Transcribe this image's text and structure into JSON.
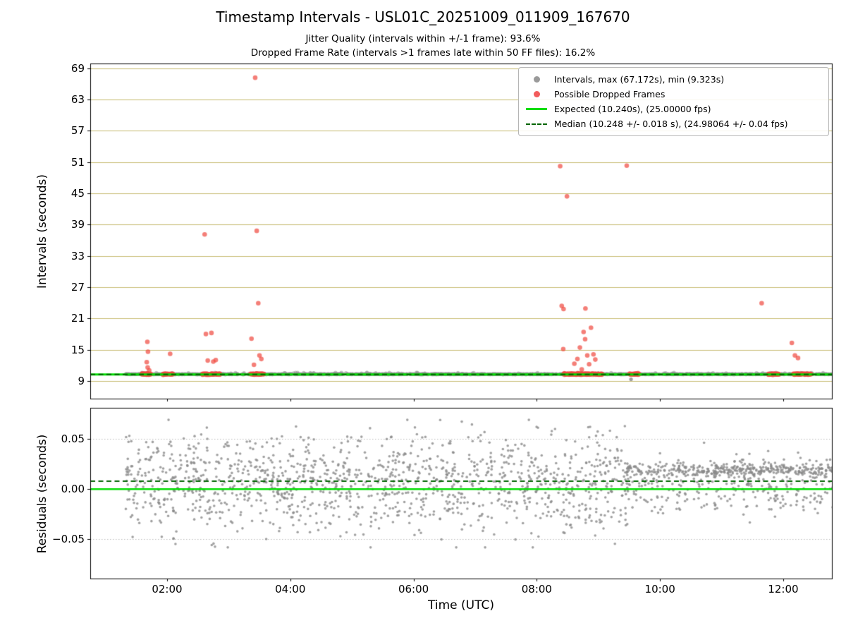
{
  "title": "Timestamp Intervals - USL01C_20251009_011909_167670",
  "subtitle1": "Jitter Quality (intervals within +/-1 frame): 93.6%",
  "subtitle2": "Dropped Frame Rate (intervals >1 frames late within 50 FF files): 16.2%",
  "xlabel": "Time (UTC)",
  "legend": {
    "items": [
      {
        "type": "dot",
        "color": "#9a9a9a",
        "marker_name": "intervals-dot-marker-icon",
        "label": "Intervals, max (67.172s), min (9.323s)"
      },
      {
        "type": "dot",
        "color": "#f25c5c",
        "marker_name": "dropped-frames-dot-marker-icon",
        "label": "Possible Dropped Frames"
      },
      {
        "type": "line",
        "color": "#00dd00",
        "marker_name": "expected-line-marker-icon",
        "label": "Expected (10.240s), (25.00000 fps)"
      },
      {
        "type": "dashed",
        "color": "#006400",
        "marker_name": "median-line-marker-icon",
        "label": "Median (10.248 +/- 0.018 s), (24.98064 +/- 0.04 fps)"
      }
    ]
  },
  "chart_data": [
    {
      "type": "scatter",
      "name": "intervals-plot",
      "ylabel": "Intervals (seconds)",
      "ylim": [
        5.6,
        69.9
      ],
      "xlim_hours": [
        0.753,
        12.79
      ],
      "yticks": [
        {
          "value": 9,
          "label": "9"
        },
        {
          "value": 15,
          "label": "15"
        },
        {
          "value": 21,
          "label": "21"
        },
        {
          "value": 27,
          "label": "27"
        },
        {
          "value": 33,
          "label": "33"
        },
        {
          "value": 39,
          "label": "39"
        },
        {
          "value": 45,
          "label": "45"
        },
        {
          "value": 51,
          "label": "51"
        },
        {
          "value": 57,
          "label": "57"
        },
        {
          "value": 63,
          "label": "63"
        },
        {
          "value": 69,
          "label": "69"
        }
      ],
      "grid": {
        "color": "#c9bc74",
        "axis": "y"
      },
      "lines": [
        {
          "name": "expected",
          "value": 10.24,
          "fps": "25.00000",
          "color": "#00dd00",
          "width": 3,
          "dash": false
        },
        {
          "name": "median",
          "value": 10.248,
          "tolerance_s": 0.018,
          "fps": "24.98064",
          "fps_tolerance": 0.04,
          "color": "#006400",
          "width": 2,
          "dash": true
        }
      ],
      "series": [
        {
          "name": "intervals",
          "color": "#8f8f8f",
          "max_s": 67.172,
          "min_s": 9.323,
          "band": {
            "t0": 1.33,
            "t1": 12.82,
            "mean": 10.29,
            "sd": 0.022,
            "count": 1500,
            "fuzz_count": 110,
            "fuzz_min": 10.33,
            "fuzz_max": 10.62
          },
          "points": [
            [
              9.53,
              9.323
            ]
          ]
        },
        {
          "name": "possible_dropped_frames",
          "color": "#f0483f",
          "cluster_mean": 10.31,
          "cluster_sd": 0.06,
          "clusters": [
            {
              "t0": 1.58,
              "t1": 1.76,
              "count": 48
            },
            {
              "t0": 1.93,
              "t1": 2.1,
              "count": 44
            },
            {
              "t0": 2.57,
              "t1": 2.86,
              "count": 82
            },
            {
              "t0": 3.35,
              "t1": 3.57,
              "count": 64
            },
            {
              "t0": 8.43,
              "t1": 9.06,
              "count": 195
            },
            {
              "t0": 9.5,
              "t1": 9.66,
              "count": 46
            },
            {
              "t0": 11.76,
              "t1": 11.94,
              "count": 52
            },
            {
              "t0": 12.16,
              "t1": 12.46,
              "count": 82
            }
          ],
          "points": [
            [
              1.67,
              12.6
            ],
            [
              1.68,
              16.5
            ],
            [
              1.685,
              11.6
            ],
            [
              1.69,
              14.6
            ],
            [
              1.71,
              11.0
            ],
            [
              2.05,
              14.2
            ],
            [
              2.61,
              37.1
            ],
            [
              2.63,
              18.0
            ],
            [
              2.66,
              12.9
            ],
            [
              2.72,
              18.2
            ],
            [
              2.75,
              12.7
            ],
            [
              2.79,
              13.0
            ],
            [
              3.37,
              17.1
            ],
            [
              3.41,
              12.1
            ],
            [
              3.43,
              67.172
            ],
            [
              3.455,
              37.8
            ],
            [
              3.48,
              23.9
            ],
            [
              3.5,
              13.9
            ],
            [
              3.53,
              13.2
            ],
            [
              8.38,
              50.2
            ],
            [
              8.405,
              23.4
            ],
            [
              8.435,
              22.8
            ],
            [
              8.43,
              15.1
            ],
            [
              8.49,
              44.4
            ],
            [
              8.61,
              12.3
            ],
            [
              8.66,
              13.2
            ],
            [
              8.7,
              15.4
            ],
            [
              8.73,
              11.2
            ],
            [
              8.76,
              18.4
            ],
            [
              8.785,
              17.0
            ],
            [
              8.79,
              22.9
            ],
            [
              8.82,
              13.9
            ],
            [
              8.85,
              12.2
            ],
            [
              8.88,
              19.2
            ],
            [
              8.92,
              14.1
            ],
            [
              8.95,
              13.1
            ],
            [
              9.46,
              50.3
            ],
            [
              11.65,
              23.9
            ],
            [
              12.14,
              16.3
            ],
            [
              12.19,
              13.9
            ],
            [
              12.24,
              13.4
            ]
          ]
        }
      ]
    },
    {
      "type": "scatter",
      "name": "residuals-plot",
      "ylabel": "Residuals (seconds)",
      "ylim": [
        -0.089,
        0.081
      ],
      "xlim_hours": [
        0.753,
        12.79
      ],
      "yticks": [
        {
          "value": -0.05,
          "label": "−0.05"
        },
        {
          "value": 0,
          "label": "0.00"
        },
        {
          "value": 0.05,
          "label": "0.05"
        }
      ],
      "xticks": [
        {
          "hour": 2,
          "label": "02:00"
        },
        {
          "hour": 4,
          "label": "04:00"
        },
        {
          "hour": 6,
          "label": "06:00"
        },
        {
          "hour": 8,
          "label": "08:00"
        },
        {
          "hour": 10,
          "label": "10:00"
        },
        {
          "hour": 12,
          "label": "12:00"
        }
      ],
      "grid": {
        "color": "#bbbbbb",
        "style": "dotted",
        "axis": "y"
      },
      "lines": [
        {
          "name": "expected",
          "value": 0.0,
          "color": "#00dd00",
          "width": 2.5,
          "dash": false
        },
        {
          "name": "median",
          "value": 0.008,
          "color": "#006400",
          "width": 2,
          "dash": true
        }
      ],
      "series": [
        {
          "name": "residuals",
          "color": "#8a8a8a",
          "clouds": [
            {
              "t0": 1.33,
              "t1": 9.45,
              "count": 1300,
              "mean": 0.006,
              "sd": 0.0235,
              "clip": [
                -0.058,
                0.069
              ]
            },
            {
              "t0": 9.45,
              "t1": 12.82,
              "count": 640,
              "mixture": [
                {
                  "w": 0.55,
                  "mean": 0.019,
                  "sd": 0.0035
                },
                {
                  "w": 0.45,
                  "mean": 0.002,
                  "sd": 0.014
                }
              ],
              "clip": [
                -0.048,
                0.052
              ]
            }
          ]
        }
      ]
    }
  ]
}
